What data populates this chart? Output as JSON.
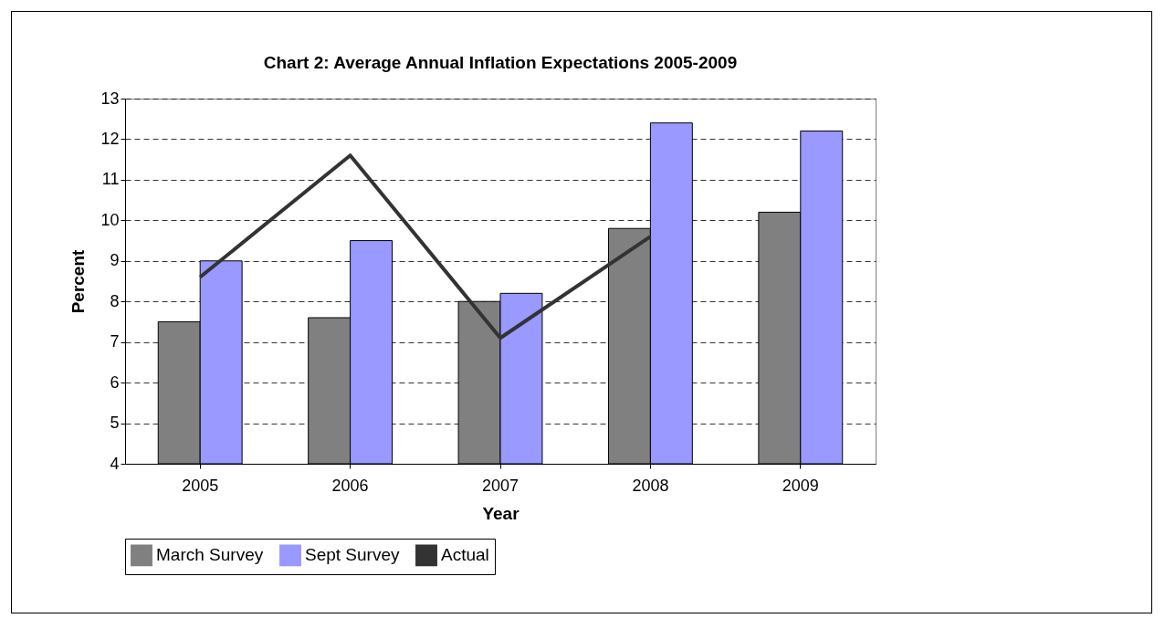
{
  "chart_data": {
    "type": "bar",
    "title": "Chart 2: Average Annual Inflation Expectations  2005-2009",
    "xlabel": "Year",
    "ylabel": "Percent",
    "categories": [
      "2005",
      "2006",
      "2007",
      "2008",
      "2009"
    ],
    "series": [
      {
        "name": "March Survey",
        "color": "#808080",
        "values": [
          7.5,
          7.6,
          8.0,
          9.8,
          10.2
        ]
      },
      {
        "name": "Sept Survey",
        "color": "#9999ff",
        "values": [
          9.0,
          9.5,
          8.2,
          12.4,
          12.2
        ]
      },
      {
        "name": "Actual",
        "type": "line",
        "color": "#333333",
        "values": [
          8.6,
          11.6,
          7.1,
          9.6,
          null
        ]
      }
    ],
    "ylim": [
      4,
      13
    ],
    "yticks": [
      4,
      5,
      6,
      7,
      8,
      9,
      10,
      11,
      12,
      13
    ],
    "grid": "y",
    "legend": "bottom"
  }
}
